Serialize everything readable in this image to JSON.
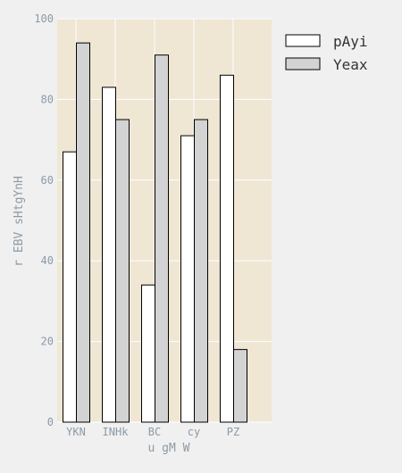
{
  "colors": {
    "page_background": "#f0f0f0",
    "plot_background": "#efe6d4",
    "grid": "#ffffff",
    "bar_edge": "#000000",
    "tick_text": "#8c9aa6",
    "legend_text": "#333333"
  },
  "chart_data": {
    "type": "bar",
    "title": "",
    "xlabel": "u gM W",
    "ylabel": "r EBV sHtgYnH",
    "categories": [
      "YKN",
      "INHk",
      "BC",
      "cy",
      "PZ"
    ],
    "ylim": [
      0,
      100
    ],
    "yticks": [
      0,
      20,
      40,
      60,
      80,
      100
    ],
    "grid": true,
    "legend_position": "outside-right-top",
    "series": [
      {
        "name": "pAyi",
        "color": "#ffffff",
        "values": [
          67,
          83,
          34,
          71,
          86
        ]
      },
      {
        "name": "Yeax",
        "color": "#d3d3d3",
        "values": [
          94,
          75,
          91,
          75,
          18
        ]
      }
    ]
  }
}
